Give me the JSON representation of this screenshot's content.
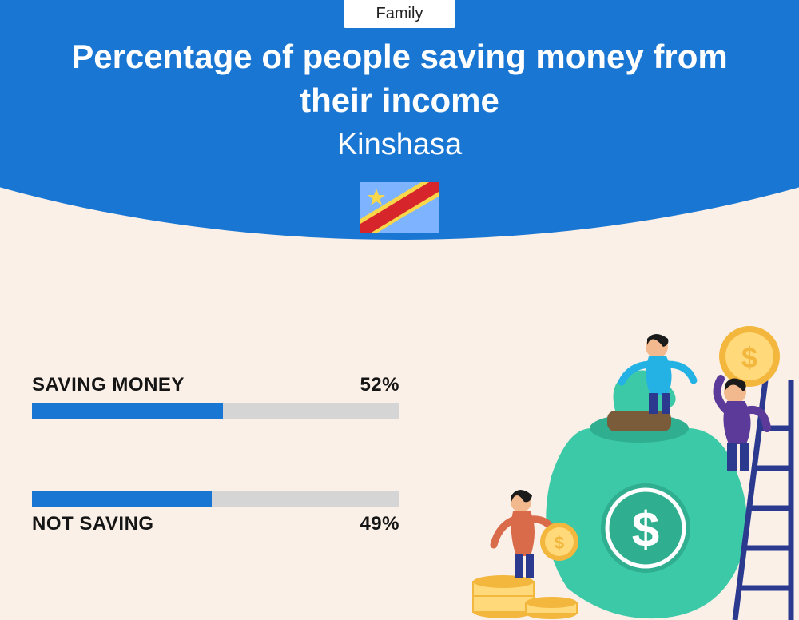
{
  "badge": "Family",
  "title": "Percentage of people saving money from their income",
  "subtitle": "Kinshasa",
  "flag": {
    "bg": "#7db3ff",
    "star": "#f8d84a",
    "stripe_red": "#d7262b",
    "stripe_yellow": "#f8d84a"
  },
  "colors": {
    "hero": "#1976d2",
    "background": "#faf0e8",
    "bar_fill": "#1976d2",
    "bar_track": "#d5d5d5",
    "text_dark": "#151515",
    "text_light": "#ffffff"
  },
  "bars": [
    {
      "label": "SAVING MONEY",
      "value": 52,
      "display": "52%",
      "label_position": "above"
    },
    {
      "label": "NOT SAVING",
      "value": 49,
      "display": "49%",
      "label_position": "below"
    }
  ],
  "bar_scale_max": 100,
  "typography": {
    "title_size": 42,
    "title_weight": 800,
    "subtitle_size": 38,
    "subtitle_weight": 400,
    "label_size": 24,
    "label_weight": 800,
    "badge_size": 20
  },
  "illustration": {
    "bag": "#3cc9a7",
    "bag_rope": "#7a5b3a",
    "coin": "#f3b73e",
    "coin_inner": "#ffd97a",
    "ladder": "#2b3a8f",
    "person1_top": "#24b2e5",
    "person1_bottom": "#2b3a8f",
    "person2_top": "#5b3a99",
    "person2_bottom": "#2b3a8f",
    "person3_top": "#d96a4a",
    "person3_bottom": "#2b3a8f",
    "skin": "#f2b98f",
    "hair": "#1b1b1b",
    "dollar": "#ffffff"
  }
}
